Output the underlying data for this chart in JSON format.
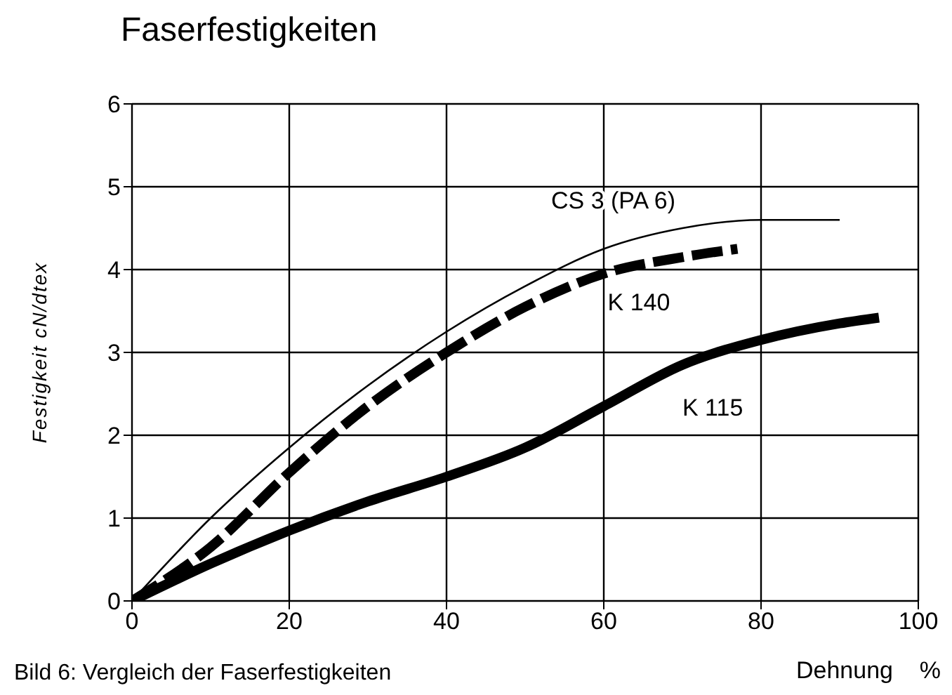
{
  "chart_data": {
    "type": "line",
    "title": "Faserfestigkeiten",
    "xlabel": "Dehnung    %",
    "ylabel": "Festigkeit    cN/dtex",
    "annotations": [
      "Bild 6: Vergleich der Faserfestigkeiten"
    ],
    "xlim": [
      0,
      100
    ],
    "xticks": [
      0,
      20,
      40,
      60,
      80,
      100
    ],
    "ylim": [
      0,
      6
    ],
    "yticks": [
      0,
      1,
      2,
      3,
      4,
      5,
      6
    ],
    "grid": true,
    "marker": "none",
    "series": [
      {
        "name": "CS 3 (PA 6)",
        "color": "#000000",
        "line_style": "solid",
        "x": [
          0,
          10,
          20,
          30,
          40,
          50,
          60,
          70,
          80,
          90
        ],
        "values": [
          0,
          1,
          1.85,
          2.6,
          3.25,
          3.8,
          4.25,
          4.5,
          4.6,
          4.6
        ]
      },
      {
        "name": "K 140",
        "color": "#000000",
        "line_style": "dashed",
        "x": [
          0,
          10,
          20,
          30,
          40,
          50,
          60,
          70,
          77
        ],
        "values": [
          0,
          0.65,
          1.55,
          2.35,
          3,
          3.55,
          3.95,
          4.15,
          4.25
        ]
      },
      {
        "name": "K 115",
        "color": "#000000",
        "line_style": "solid",
        "x": [
          0,
          10,
          20,
          30,
          40,
          50,
          60,
          70,
          80,
          90,
          95
        ],
        "values": [
          0,
          0.45,
          0.85,
          1.2,
          1.5,
          1.85,
          2.35,
          2.85,
          3.15,
          3.35,
          3.42
        ]
      }
    ]
  }
}
